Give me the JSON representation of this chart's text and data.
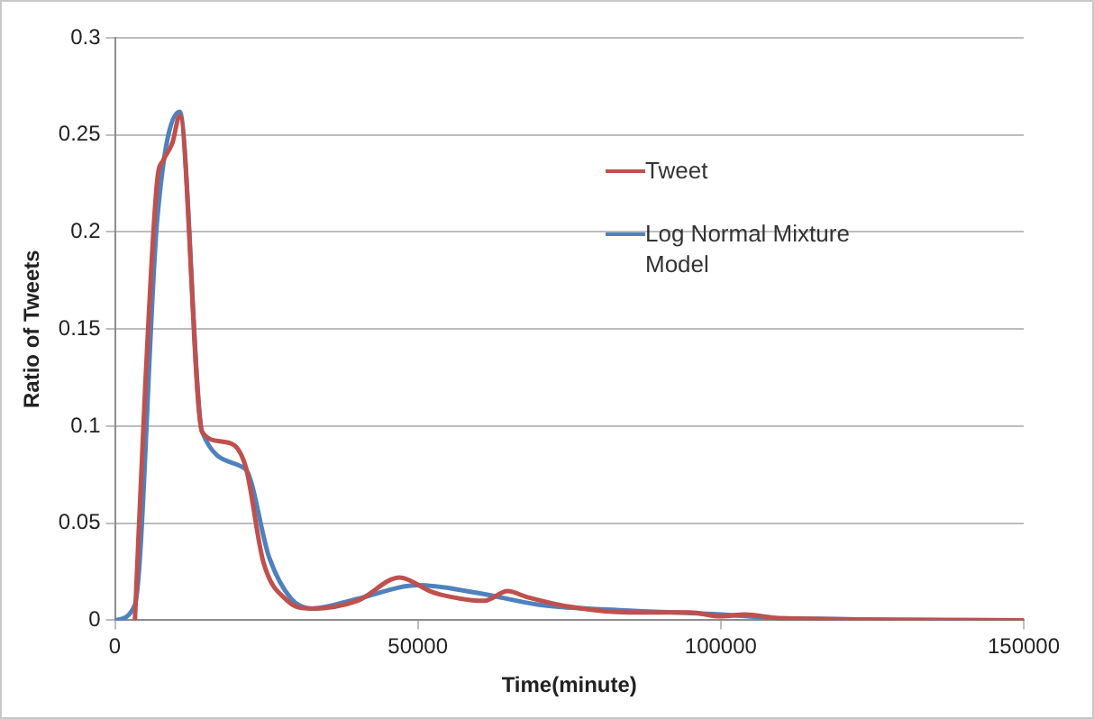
{
  "chart_data": {
    "type": "line",
    "xlabel": "Time(minute)",
    "ylabel": "Ratio of Tweets",
    "xlim": [
      0,
      150000
    ],
    "xticks": [
      0,
      50000,
      100000,
      150000
    ],
    "ylim": [
      0,
      0.3
    ],
    "yticks": [
      0,
      0.05,
      0.1,
      0.15,
      0.2,
      0.25,
      0.3
    ],
    "grid": "y",
    "legend": "right",
    "marker": "none",
    "line_style": "solid",
    "series": [
      {
        "name": "Tweet",
        "color": "#c0504d",
        "x": [
          3300,
          5000,
          7000,
          8000,
          9500,
          10700,
          14400,
          17800,
          21500,
          24500,
          28500,
          32500,
          40000,
          47000,
          52000,
          54000,
          61000,
          64800,
          68000,
          75000,
          85000,
          95000,
          100000,
          104000,
          110000,
          150000
        ],
        "values": [
          0,
          0.12,
          0.227,
          0.237,
          0.246,
          0.26,
          0.097,
          0.092,
          0.08,
          0.03,
          0.01,
          0.006,
          0.01,
          0.022,
          0.015,
          0.013,
          0.01,
          0.015,
          0.012,
          0.007,
          0.004,
          0.004,
          0.002,
          0.003,
          0.001,
          0
        ]
      },
      {
        "name": "Log Normal Mixture Model",
        "color": "#4f81bd",
        "x": [
          0,
          3300,
          7000,
          10700,
          14400,
          21500,
          25500,
          29100,
          32500,
          40000,
          50000,
          60000,
          70000,
          85000,
          100000,
          110000,
          150000
        ],
        "values": [
          0,
          0.008,
          0.207,
          0.262,
          0.097,
          0.078,
          0.032,
          0.011,
          0.006,
          0.011,
          0.018,
          0.014,
          0.008,
          0.005,
          0.003,
          0.001,
          0
        ]
      }
    ]
  }
}
